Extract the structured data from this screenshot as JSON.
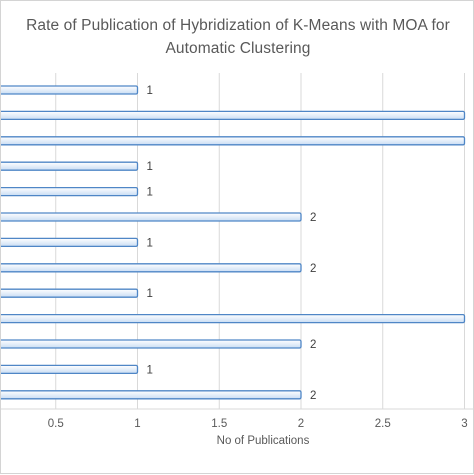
{
  "chart_data": {
    "type": "bar",
    "orientation": "horizontal",
    "title_line1": "Rate of Publication of Hybridization of K-Means with MOA for",
    "title_line2": "Automatic Clustering",
    "xlabel": "No of Publications",
    "ylabel": "",
    "xlim": [
      0,
      3
    ],
    "x_ticks": [
      "0.5",
      "1",
      "1.5",
      "2",
      "2.5",
      "3"
    ],
    "values": [
      1,
      3,
      3,
      1,
      1,
      2,
      1,
      2,
      1,
      3,
      2,
      1,
      2
    ],
    "data_labels": [
      "1",
      "",
      "",
      "1",
      "1",
      "2",
      "1",
      "2",
      "1",
      "",
      "2",
      "1",
      "2"
    ],
    "grid": true,
    "legend": "none",
    "colors": {
      "bar_fill_top": "#ffffff",
      "bar_fill_bottom": "#c9ddf4",
      "bar_border": "#4f86c6",
      "grid": "#d9d9d9",
      "text": "#595959"
    }
  }
}
